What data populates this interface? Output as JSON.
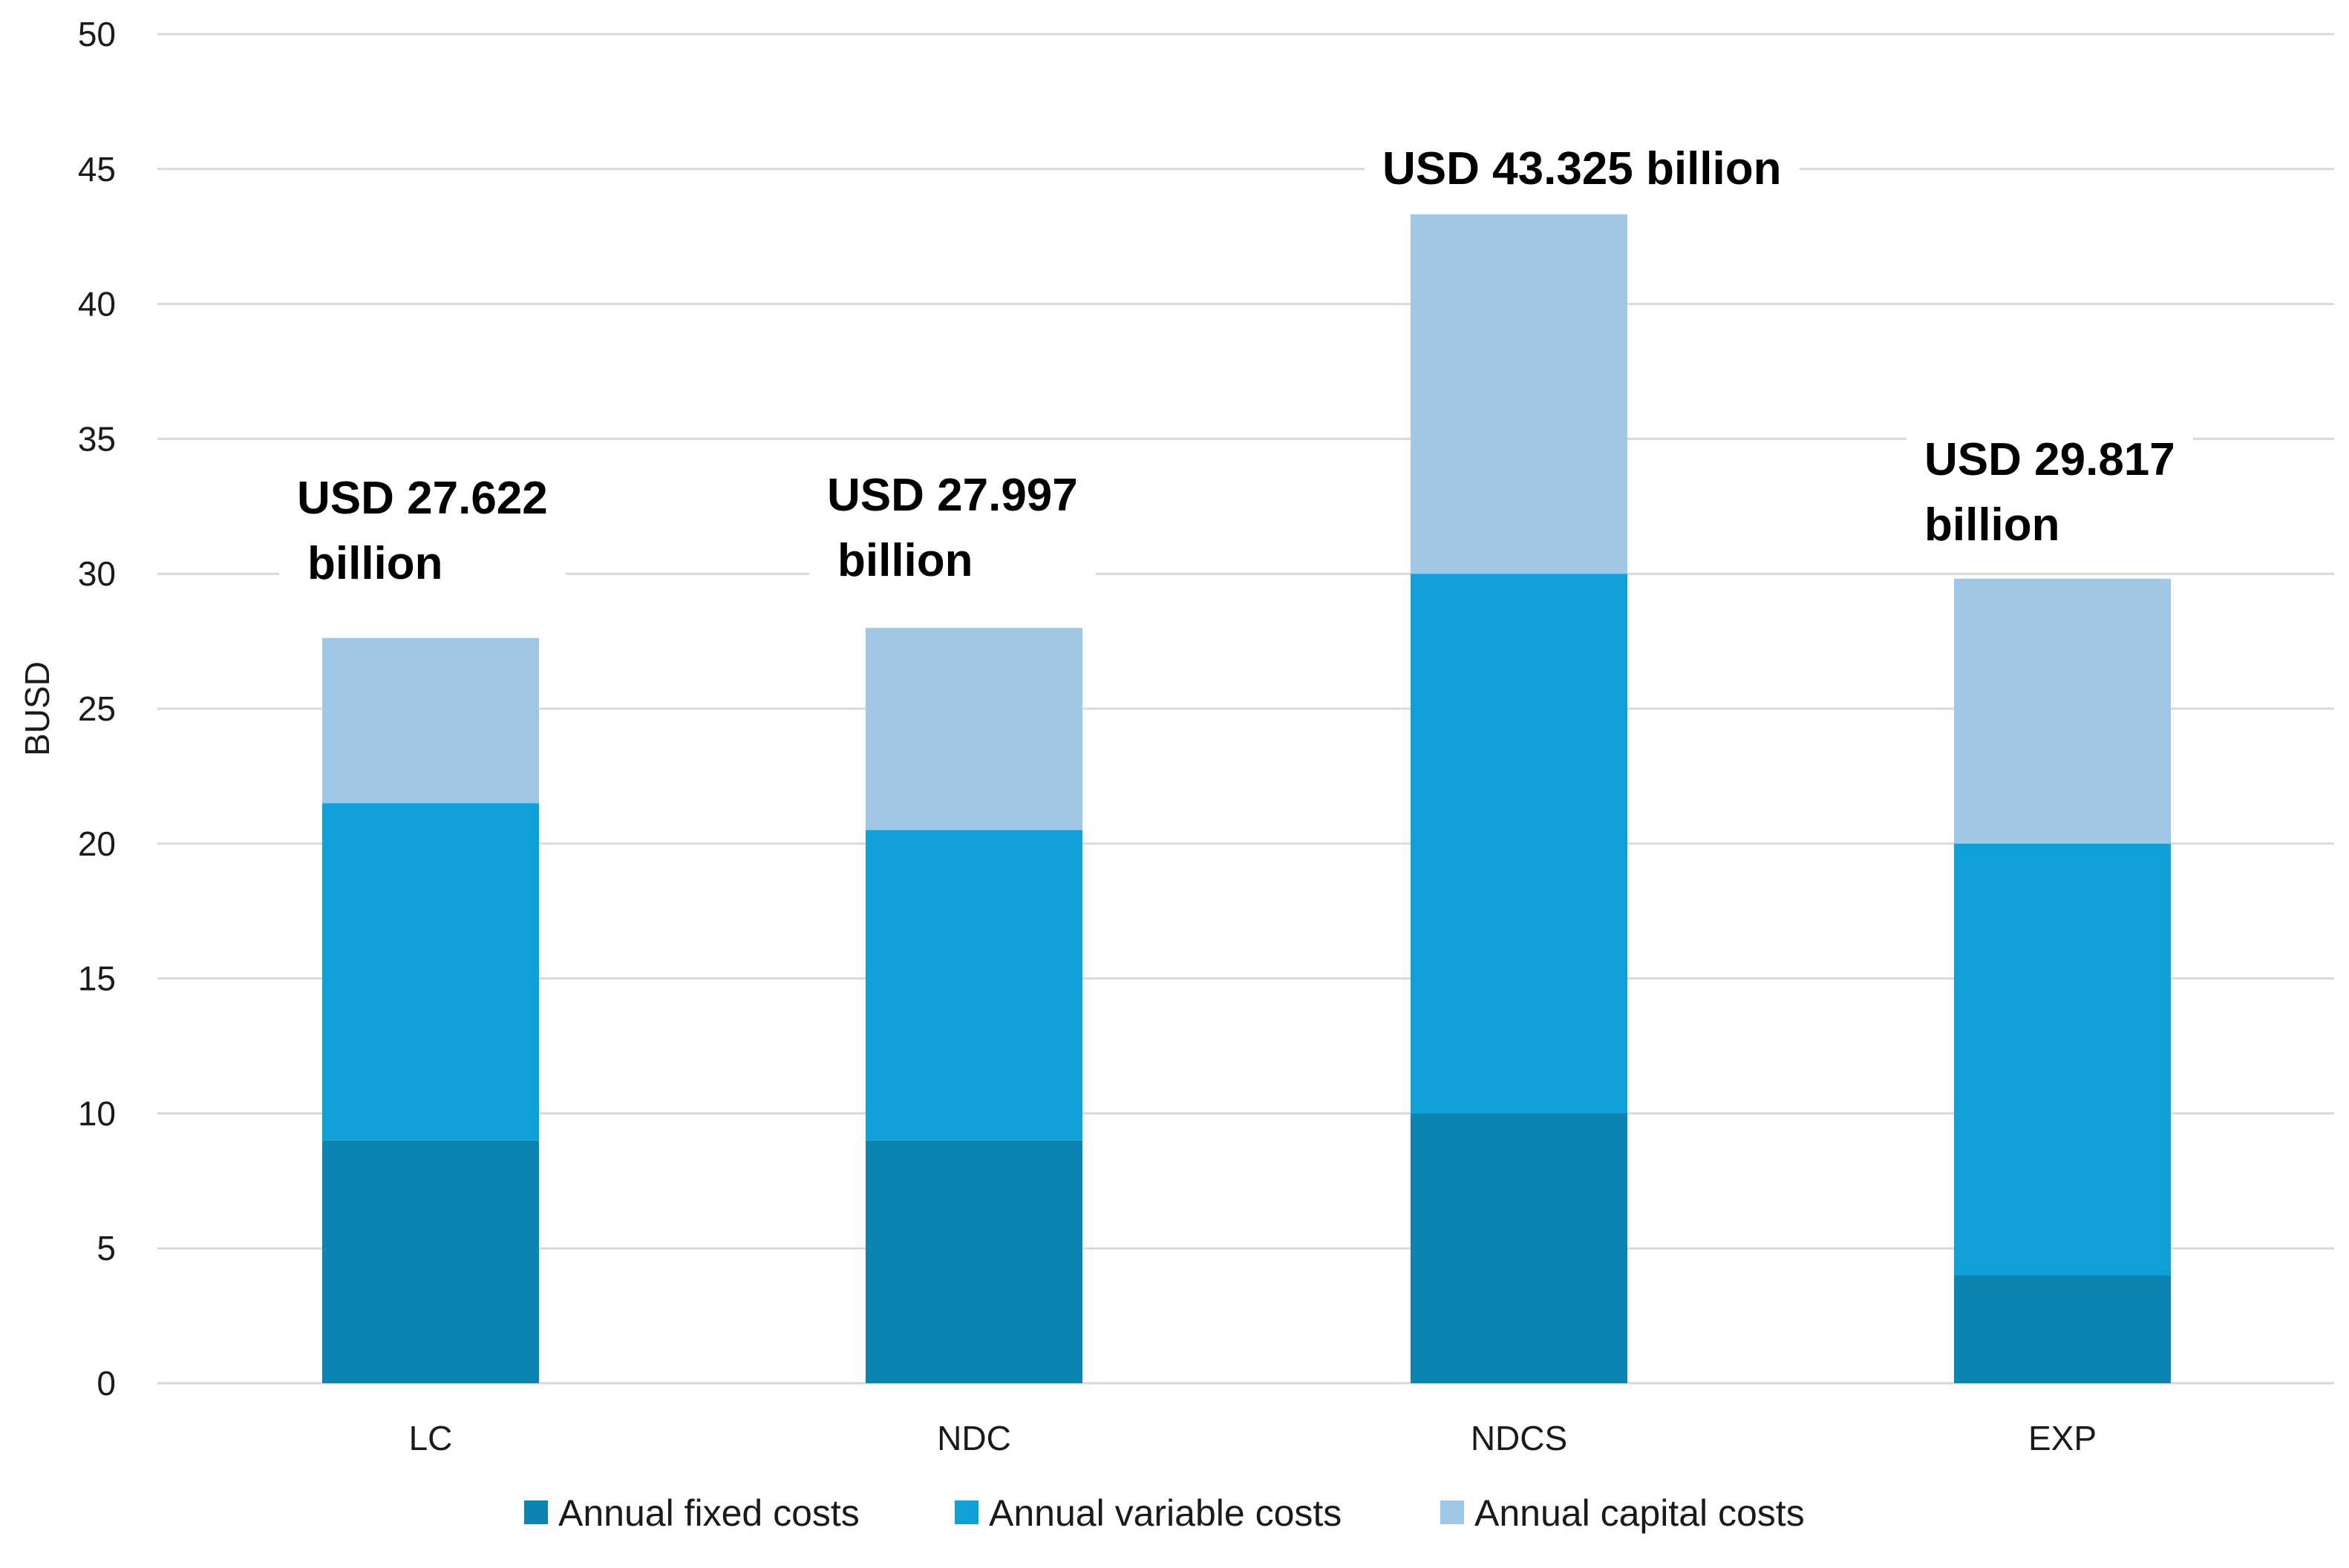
{
  "chart_data": {
    "type": "bar",
    "stacked": true,
    "title": "",
    "xlabel": "",
    "ylabel": "BUSD",
    "ylim": [
      0,
      50
    ],
    "yticks": [
      0,
      5,
      10,
      15,
      20,
      25,
      30,
      35,
      40,
      45,
      50
    ],
    "grid": true,
    "legend_position": "bottom",
    "categories": [
      "LC",
      "NDC",
      "NDCS",
      "EXP"
    ],
    "series": [
      {
        "name": "Annual fixed costs",
        "color": "#0b84b2",
        "values": [
          9.0,
          9.0,
          10.0,
          4.0
        ]
      },
      {
        "name": "Annual variable costs",
        "color": "#119fd8",
        "values": [
          12.5,
          11.5,
          20.0,
          16.0
        ]
      },
      {
        "name": "Annual capital costs",
        "color": "#a1c7e6",
        "values": [
          6.122,
          7.497,
          13.325,
          9.817
        ]
      }
    ],
    "totals": [
      27.622,
      27.997,
      43.325,
      29.817
    ],
    "total_labels": [
      [
        "USD 27.622",
        "billion"
      ],
      [
        "USD 27.997",
        "billion"
      ],
      [
        "USD 43.325 billion"
      ],
      [
        "USD 29.817",
        "billion"
      ]
    ]
  }
}
